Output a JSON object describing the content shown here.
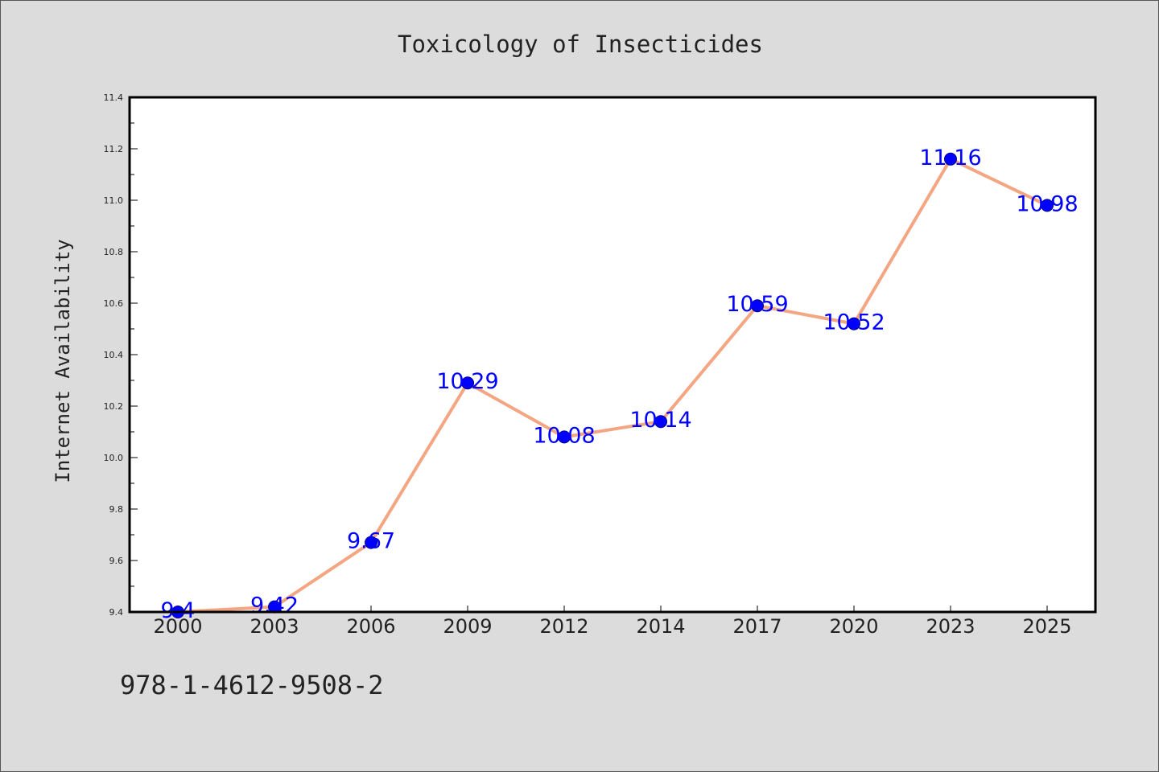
{
  "chart_data": {
    "type": "line",
    "title": "Toxicology of Insecticides",
    "xlabel": "",
    "ylabel": "Internet Availability",
    "categories": [
      "2000",
      "2003",
      "2006",
      "2009",
      "2012",
      "2014",
      "2017",
      "2020",
      "2023",
      "2025"
    ],
    "series": [
      {
        "values": [
          9.4,
          9.42,
          9.67,
          10.29,
          10.08,
          10.14,
          10.59,
          10.52,
          11.16,
          10.98
        ]
      }
    ],
    "data_labels": [
      "9.4",
      "9.42",
      "9.67",
      "10.29",
      "10.08",
      "10.14",
      "10.59",
      "10.52",
      "11.16",
      "10.98"
    ],
    "ylim": [
      9.4,
      11.4
    ],
    "yticks": [
      "9.4",
      "9.6",
      "9.8",
      "10.0",
      "10.2",
      "10.4",
      "10.6",
      "10.8",
      "11.0",
      "11.2",
      "11.4"
    ],
    "grid": false,
    "colors": {
      "line": "#f4a582",
      "marker": "#0000ff",
      "data_label": "#0000ff"
    }
  },
  "footer": {
    "isbn": "978-1-4612-9508-2"
  }
}
